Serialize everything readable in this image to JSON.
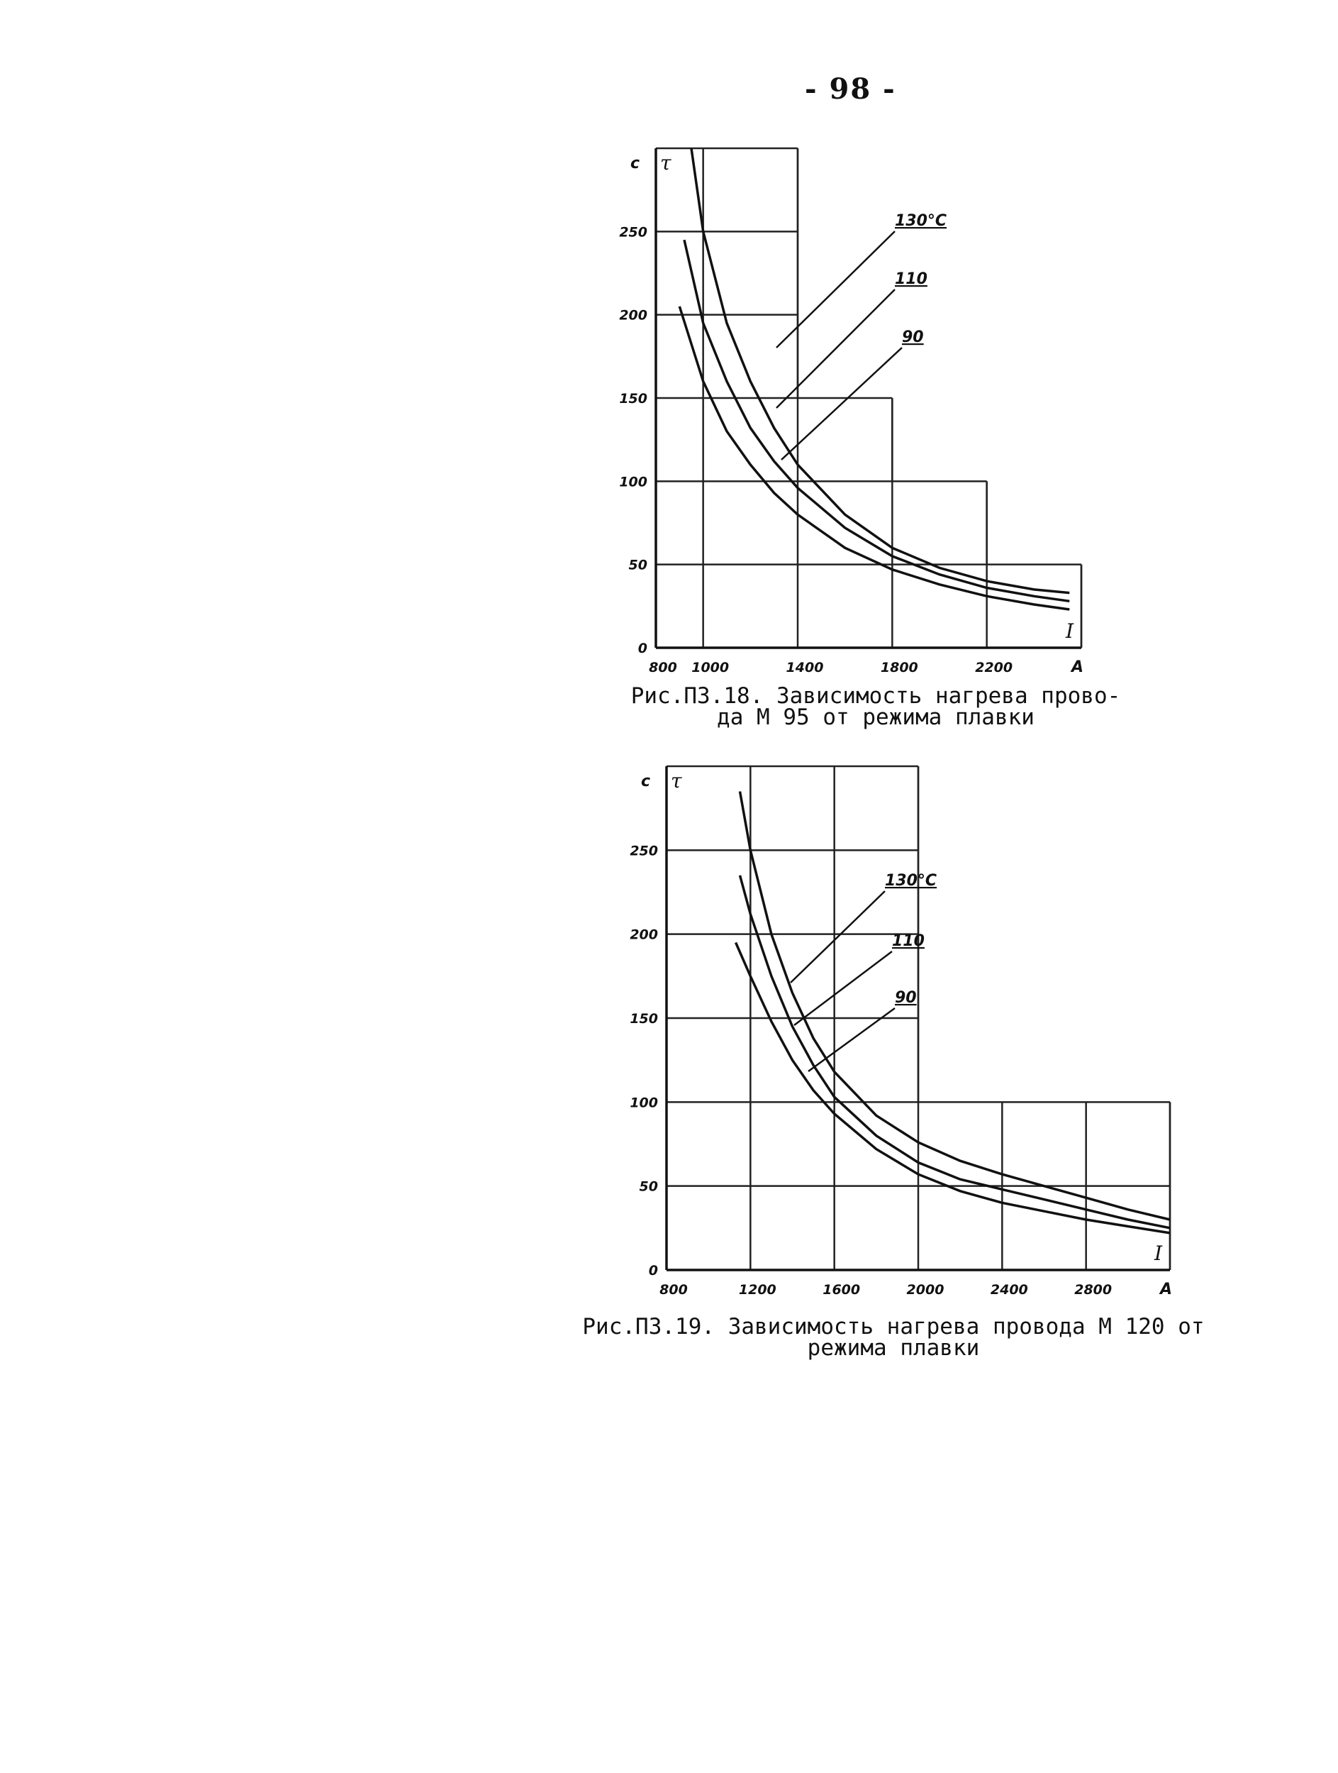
{
  "page_number": "- 98 -",
  "figures": [
    {
      "caption_line1": "Рис.П3.18. Зависимость нагрева прово-",
      "caption_line2": "да М 95 от режима плавки"
    },
    {
      "caption_line1": "Рис.П3.19. Зависимость нагрева провода М 120 от",
      "caption_line2": "режима плавки"
    }
  ],
  "chart_data": [
    {
      "type": "line",
      "xlabel": "I",
      "x_unit": "A",
      "ylabel": "τ",
      "y_unit": "c",
      "xlim": [
        800,
        2600
      ],
      "ylim": [
        0,
        300
      ],
      "x_ticks": [
        "800",
        "1000",
        "1400",
        "1800",
        "2200"
      ],
      "y_ticks": [
        "0",
        "50",
        "100",
        "150",
        "200",
        "250"
      ],
      "grid": true,
      "series": [
        {
          "name": "130°C",
          "x": [
            950,
            1000,
            1100,
            1200,
            1300,
            1400,
            1600,
            1800,
            2000,
            2200,
            2400,
            2550
          ],
          "y": [
            300,
            250,
            195,
            160,
            132,
            110,
            80,
            60,
            48,
            40,
            35,
            33
          ]
        },
        {
          "name": "110",
          "x": [
            920,
            1000,
            1100,
            1200,
            1300,
            1400,
            1600,
            1800,
            2000,
            2200,
            2400,
            2550
          ],
          "y": [
            245,
            195,
            160,
            132,
            112,
            96,
            72,
            55,
            44,
            36,
            31,
            28
          ]
        },
        {
          "name": "90",
          "x": [
            900,
            1000,
            1100,
            1200,
            1300,
            1400,
            1600,
            1800,
            2000,
            2200,
            2400,
            2550
          ],
          "y": [
            205,
            160,
            130,
            110,
            93,
            80,
            60,
            47,
            38,
            31,
            26,
            23
          ]
        }
      ]
    },
    {
      "type": "line",
      "xlabel": "I",
      "x_unit": "A",
      "ylabel": "τ",
      "y_unit": "c",
      "xlim": [
        800,
        3200
      ],
      "ylim": [
        0,
        300
      ],
      "x_ticks": [
        "800",
        "1200",
        "1600",
        "2000",
        "2400",
        "2800"
      ],
      "y_ticks": [
        "0",
        "50",
        "100",
        "150",
        "200",
        "250"
      ],
      "grid": true,
      "series": [
        {
          "name": "130°C",
          "x": [
            1150,
            1200,
            1300,
            1400,
            1500,
            1600,
            1800,
            2000,
            2200,
            2400,
            2600,
            2800,
            3000,
            3200
          ],
          "y": [
            285,
            250,
            200,
            165,
            138,
            118,
            92,
            76,
            65,
            57,
            50,
            43,
            36,
            30
          ]
        },
        {
          "name": "110",
          "x": [
            1150,
            1200,
            1300,
            1400,
            1500,
            1600,
            1800,
            2000,
            2200,
            2400,
            2600,
            2800,
            3000,
            3200
          ],
          "y": [
            235,
            212,
            175,
            145,
            122,
            103,
            80,
            64,
            54,
            48,
            42,
            36,
            30,
            25
          ]
        },
        {
          "name": "90",
          "x": [
            1130,
            1200,
            1300,
            1400,
            1500,
            1600,
            1800,
            2000,
            2200,
            2400,
            2600,
            2800,
            3000,
            3200
          ],
          "y": [
            195,
            175,
            148,
            125,
            107,
            93,
            72,
            57,
            47,
            40,
            35,
            30,
            26,
            22
          ]
        }
      ]
    }
  ]
}
